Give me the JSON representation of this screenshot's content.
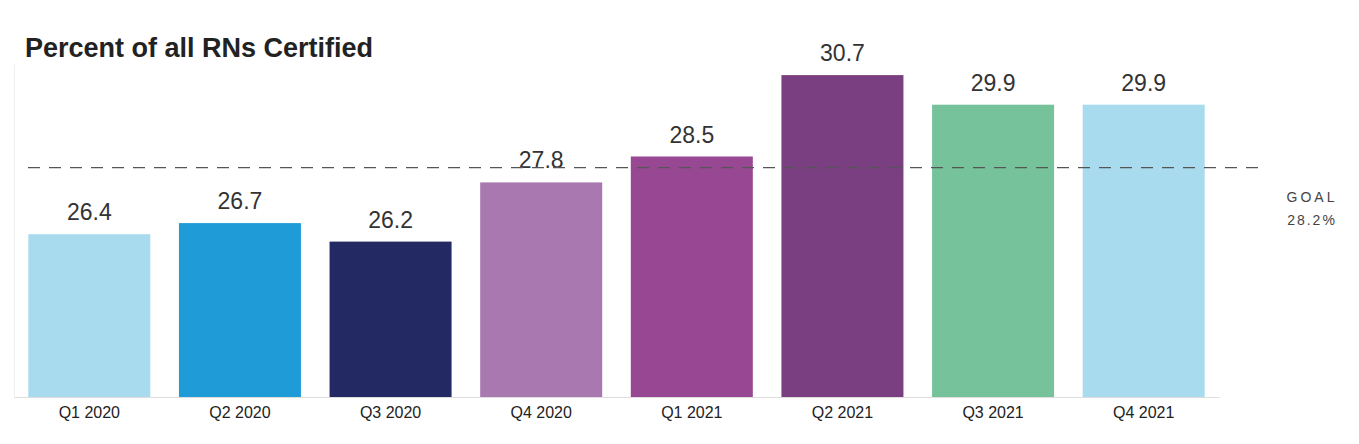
{
  "chart_data": {
    "type": "bar",
    "title": "Percent of all RNs Certified",
    "categories": [
      "Q1 2020",
      "Q2 2020",
      "Q3 2020",
      "Q4 2020",
      "Q1 2021",
      "Q2 2021",
      "Q3 2021",
      "Q4 2021"
    ],
    "values": [
      26.4,
      26.7,
      26.2,
      27.8,
      28.5,
      30.7,
      29.9,
      29.9
    ],
    "colors": [
      "#a9dbee",
      "#1f9cd8",
      "#232a63",
      "#a978b0",
      "#984793",
      "#7a3f80",
      "#76c39b",
      "#a9dbee"
    ],
    "ylim": [
      22,
      31
    ],
    "data_labels": true,
    "tick_labels": "x",
    "grid": false,
    "goal": {
      "label": "GOAL",
      "value": 28.2,
      "value_label": "28.2%"
    }
  }
}
